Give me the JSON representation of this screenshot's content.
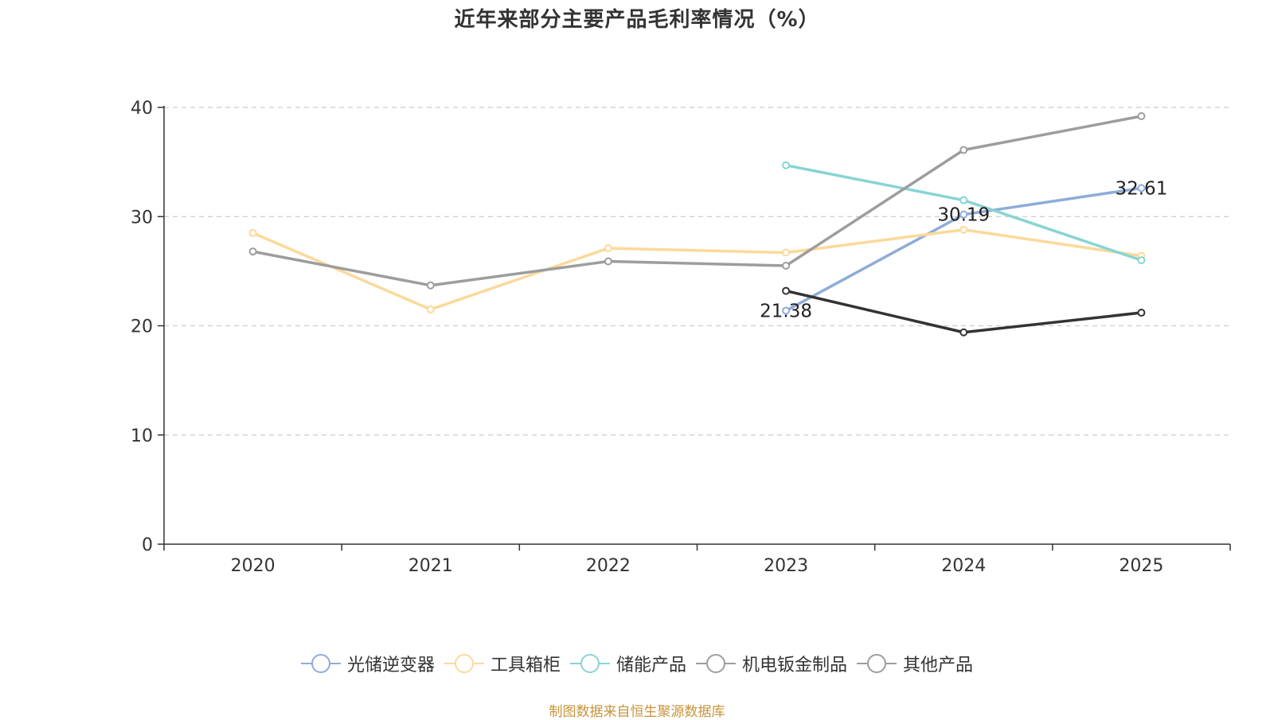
{
  "chart_data": {
    "type": "line",
    "title": "近年来部分主要产品毛利率情况（%）",
    "xlabel": "",
    "ylabel": "",
    "categories": [
      "2020",
      "2021",
      "2022",
      "2023",
      "2024",
      "2025"
    ],
    "ylim": [
      0,
      40
    ],
    "yticks": [
      0,
      10,
      20,
      30,
      40
    ],
    "grid": true,
    "legend_position": "bottom",
    "series": [
      {
        "name": "光储逆变器",
        "color": "#8eacd8",
        "values": [
          null,
          null,
          null,
          21.38,
          30.19,
          32.61
        ],
        "labels": [
          null,
          null,
          null,
          "21.38",
          "30.19",
          "32.61"
        ]
      },
      {
        "name": "工具箱柜",
        "color": "#fcd99a",
        "values": [
          28.5,
          21.5,
          27.1,
          26.7,
          28.8,
          26.4
        ],
        "labels": [
          null,
          null,
          null,
          null,
          null,
          null
        ]
      },
      {
        "name": "储能产品",
        "color": "#87d4d4",
        "values": [
          null,
          null,
          null,
          34.7,
          31.5,
          26.0
        ],
        "labels": [
          null,
          null,
          null,
          null,
          null,
          null
        ]
      },
      {
        "name": "机电钣金制品",
        "color": "#333333",
        "values": [
          null,
          null,
          null,
          23.2,
          19.4,
          21.2
        ],
        "labels": [
          null,
          null,
          null,
          null,
          null,
          null
        ]
      },
      {
        "name": "其他产品",
        "color": "#9d9d9d",
        "values": [
          26.8,
          23.7,
          25.9,
          25.5,
          36.1,
          39.2
        ],
        "labels": [
          null,
          null,
          null,
          null,
          null,
          null
        ]
      }
    ],
    "legend": [
      {
        "name": "光储逆变器",
        "color": "#8eacd8"
      },
      {
        "name": "工具箱柜",
        "color": "#fcd99a"
      },
      {
        "name": "储能产品",
        "color": "#87d4d4"
      },
      {
        "name": "机电钣金制品",
        "color": "#9d9d9d"
      },
      {
        "name": "其他产品",
        "color": "#9d9d9d"
      }
    ]
  },
  "source_note": "制图数据来自恒生聚源数据库"
}
